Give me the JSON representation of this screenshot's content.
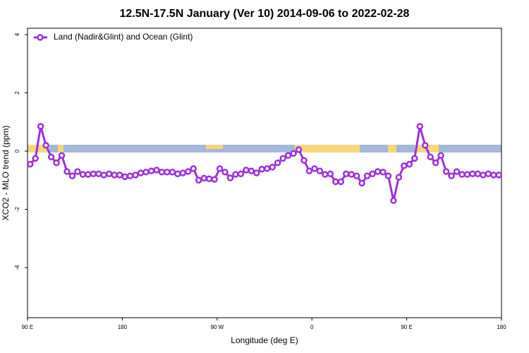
{
  "chart_data": {
    "type": "line",
    "title": "12.5N-17.5N January (Ver 10)   2014-09-06 to 2022-02-28",
    "x_label": "Longitude (deg E)",
    "y_label": "XCO2 - MLO trend (ppm)",
    "x": [
      92.5,
      97.5,
      102.5,
      107.5,
      112.5,
      117.5,
      122.5,
      127.5,
      132.5,
      137.5,
      142.5,
      147.5,
      152.5,
      157.5,
      162.5,
      167.5,
      172.5,
      177.5,
      182.5,
      187.5,
      192.5,
      197.5,
      202.5,
      207.5,
      212.5,
      217.5,
      222.5,
      227.5,
      232.5,
      237.5,
      242.5,
      247.5,
      252.5,
      257.5,
      262.5,
      267.5,
      272.5,
      277.5,
      282.5,
      287.5,
      292.5,
      297.5,
      302.5,
      307.5,
      312.5,
      317.5,
      322.5,
      327.5,
      332.5,
      337.5,
      342.5,
      347.5,
      352.5,
      357.5,
      362.5,
      367.5,
      372.5,
      377.5,
      382.5,
      387.5,
      392.5,
      397.5,
      402.5,
      407.5,
      412.5,
      417.5,
      422.5,
      427.5,
      432.5,
      437.5,
      442.5,
      447.5,
      452.5,
      457.5,
      462.5,
      467.5,
      472.5,
      477.5,
      482.5,
      487.5,
      492.5,
      497.5,
      502.5,
      507.5,
      512.5,
      517.5,
      522.5,
      527.5,
      532.5,
      537.5
    ],
    "series": [
      {
        "name": "Land (Nadir&Glint) and Ocean (Glint)",
        "color": "#9b30e0",
        "values": [
          -0.45,
          -0.25,
          0.85,
          0.2,
          -0.2,
          -0.4,
          -0.15,
          -0.7,
          -0.85,
          -0.7,
          -0.8,
          -0.8,
          -0.78,
          -0.78,
          -0.82,
          -0.78,
          -0.82,
          -0.82,
          -0.88,
          -0.85,
          -0.82,
          -0.75,
          -0.72,
          -0.68,
          -0.65,
          -0.72,
          -0.72,
          -0.72,
          -0.78,
          -0.75,
          -0.7,
          -0.6,
          -1.0,
          -0.93,
          -0.95,
          -0.97,
          -0.6,
          -0.72,
          -0.92,
          -0.8,
          -0.78,
          -0.65,
          -0.68,
          -0.75,
          -0.62,
          -0.6,
          -0.55,
          -0.4,
          -0.25,
          -0.15,
          -0.08,
          0.05,
          -0.32,
          -0.68,
          -0.6,
          -0.68,
          -0.8,
          -0.78,
          -1.05,
          -1.05,
          -0.78,
          -0.8,
          -0.85,
          -1.1,
          -0.85,
          -0.78,
          -0.7,
          -0.72,
          -0.85,
          -1.7,
          -0.9,
          -0.5,
          -0.45,
          -0.25,
          0.85,
          0.2,
          -0.2,
          -0.4,
          -0.15,
          -0.7,
          -0.85,
          -0.7,
          -0.8,
          -0.8,
          -0.78,
          -0.78,
          -0.82,
          -0.78,
          -0.82,
          -0.82
        ]
      }
    ],
    "xlim": [
      90,
      540
    ],
    "xticks": [
      {
        "value": 90,
        "label": "90 E"
      },
      180,
      {
        "value": 270,
        "label": "90 W"
      },
      {
        "value": 360,
        "label": "0"
      },
      {
        "value": 450,
        "label": "90 E"
      },
      {
        "value": 540,
        "label": "180"
      }
    ],
    "ylim": [
      -5.72,
      4.22
    ],
    "yticks": [
      4,
      2,
      0,
      -2,
      -4
    ],
    "legend": "top-left"
  }
}
